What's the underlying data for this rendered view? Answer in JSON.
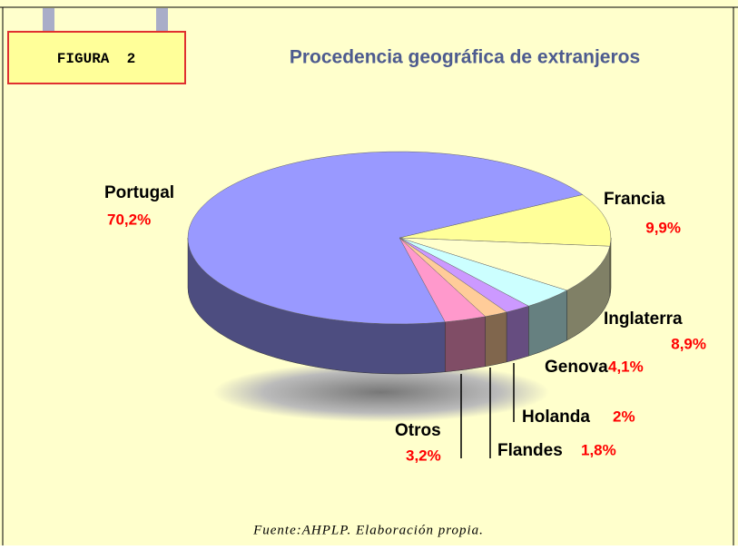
{
  "badge": "FIGURA  2",
  "source": "Fuente:AHPLP. Elaboración propia.",
  "chart_data": {
    "type": "pie",
    "title": "Procedencia geográfica de extranjeros",
    "categories": [
      "Francia",
      "Inglaterra",
      "Genova",
      "Holanda",
      "Flandes",
      "Otros",
      "Portugal"
    ],
    "values": [
      9.9,
      8.9,
      4.1,
      2,
      1.8,
      3.2,
      70.2
    ],
    "value_labels": [
      "9,9%",
      "8,9%",
      "4,1%",
      "2%",
      "1,8%",
      "3,2%",
      "70,2%"
    ],
    "colors": [
      "#ffff99",
      "#ffffcc",
      "#ccffff",
      "#cc99ff",
      "#ffcc99",
      "#ff99cc",
      "#9999ff"
    ]
  }
}
